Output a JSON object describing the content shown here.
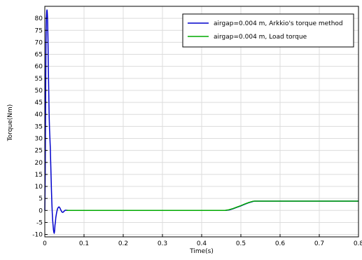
{
  "chart_data": {
    "type": "line",
    "title": "",
    "xlabel": "Time(s)",
    "ylabel": "Torque(Nm)",
    "xlim": [
      0,
      0.8
    ],
    "ylim": [
      -11,
      85
    ],
    "x_ticks": [
      0,
      0.1,
      0.2,
      0.3,
      0.4,
      0.5,
      0.6,
      0.7,
      0.8
    ],
    "x_tick_labels": [
      "0",
      "0.1",
      "0.2",
      "0.3",
      "0.4",
      "0.5",
      "0.6",
      "0.7",
      "0.8"
    ],
    "y_ticks": [
      -10,
      -5,
      0,
      5,
      10,
      15,
      20,
      25,
      30,
      35,
      40,
      45,
      50,
      55,
      60,
      65,
      70,
      75,
      80
    ],
    "y_tick_labels": [
      "-10",
      "-5",
      "0",
      "5",
      "10",
      "15",
      "20",
      "25",
      "30",
      "35",
      "40",
      "45",
      "50",
      "55",
      "60",
      "65",
      "70",
      "75",
      "80"
    ],
    "grid": true,
    "legend_position": "top-right",
    "series": [
      {
        "name": "airgap=0.004 m, Arkkio's torque method",
        "color": "#0000cc",
        "points": [
          [
            0,
            0
          ],
          [
            0.001,
            15
          ],
          [
            0.002,
            45
          ],
          [
            0.003,
            70
          ],
          [
            0.004,
            80
          ],
          [
            0.005,
            83
          ],
          [
            0.0055,
            83.5
          ],
          [
            0.006,
            83
          ],
          [
            0.007,
            80
          ],
          [
            0.008,
            72
          ],
          [
            0.009,
            60
          ],
          [
            0.01,
            50
          ],
          [
            0.011,
            40
          ],
          [
            0.012,
            34
          ],
          [
            0.013,
            30
          ],
          [
            0.014,
            26
          ],
          [
            0.015,
            20
          ],
          [
            0.016,
            14
          ],
          [
            0.017,
            8
          ],
          [
            0.018,
            3
          ],
          [
            0.019,
            -1
          ],
          [
            0.02,
            -4
          ],
          [
            0.021,
            -6
          ],
          [
            0.022,
            -8
          ],
          [
            0.023,
            -9
          ],
          [
            0.024,
            -9.5
          ],
          [
            0.025,
            -8.5
          ],
          [
            0.026,
            -6
          ],
          [
            0.027,
            -5
          ],
          [
            0.028,
            -3
          ],
          [
            0.03,
            -1
          ],
          [
            0.032,
            0.5
          ],
          [
            0.034,
            1.2
          ],
          [
            0.036,
            1.5
          ],
          [
            0.038,
            1.2
          ],
          [
            0.04,
            0.5
          ],
          [
            0.042,
            -0.2
          ],
          [
            0.044,
            -0.7
          ],
          [
            0.046,
            -0.8
          ],
          [
            0.048,
            -0.5
          ],
          [
            0.05,
            -0.2
          ],
          [
            0.052,
            0.1
          ],
          [
            0.055,
            0.1
          ],
          [
            0.06,
            0
          ],
          [
            0.1,
            0
          ],
          [
            0.2,
            0
          ],
          [
            0.3,
            0
          ],
          [
            0.4,
            0
          ],
          [
            0.46,
            0
          ],
          [
            0.47,
            0.2
          ],
          [
            0.48,
            0.7
          ],
          [
            0.49,
            1.3
          ],
          [
            0.5,
            1.9
          ],
          [
            0.51,
            2.6
          ],
          [
            0.52,
            3.2
          ],
          [
            0.53,
            3.7
          ],
          [
            0.535,
            3.9
          ],
          [
            0.54,
            3.9
          ],
          [
            0.6,
            3.9
          ],
          [
            0.7,
            3.9
          ],
          [
            0.8,
            3.9
          ]
        ]
      },
      {
        "name": "airgap=0.004 m, Load torque",
        "color": "#00aa00",
        "points": [
          [
            0.055,
            0
          ],
          [
            0.1,
            0
          ],
          [
            0.2,
            0
          ],
          [
            0.3,
            0
          ],
          [
            0.4,
            0
          ],
          [
            0.46,
            0
          ],
          [
            0.47,
            0.3
          ],
          [
            0.48,
            0.8
          ],
          [
            0.49,
            1.4
          ],
          [
            0.5,
            2.0
          ],
          [
            0.51,
            2.7
          ],
          [
            0.52,
            3.3
          ],
          [
            0.53,
            3.8
          ],
          [
            0.535,
            3.9
          ],
          [
            0.54,
            3.9
          ],
          [
            0.6,
            3.9
          ],
          [
            0.7,
            3.9
          ],
          [
            0.8,
            3.9
          ]
        ]
      }
    ]
  }
}
